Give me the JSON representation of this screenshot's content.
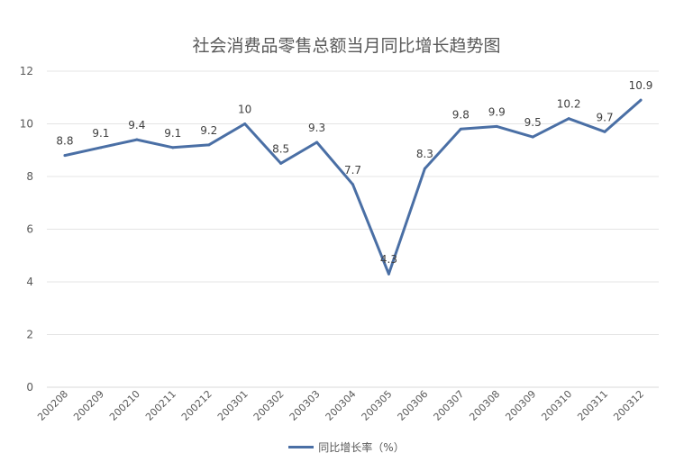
{
  "chart_data": {
    "type": "line",
    "title": "社会消费品零售总额当月同比增长趋势图",
    "categories": [
      "200208",
      "200209",
      "200210",
      "200211",
      "200212",
      "200301",
      "200302",
      "200303",
      "200304",
      "200305",
      "200306",
      "200307",
      "200308",
      "200309",
      "200310",
      "200311",
      "200312"
    ],
    "series": [
      {
        "name": "同比增长率（%）",
        "values": [
          8.8,
          9.1,
          9.4,
          9.1,
          9.2,
          10,
          8.5,
          9.3,
          7.7,
          4.3,
          8.3,
          9.8,
          9.9,
          9.5,
          10.2,
          9.7,
          10.9
        ],
        "labels": [
          "8.8",
          "9.1",
          "9.4",
          "9.1",
          "9.2",
          "10",
          "8.5",
          "9.3",
          "7.7",
          "4.3",
          "8.3",
          "9.8",
          "9.9",
          "9.5",
          "10.2",
          "9.7",
          "10.9"
        ],
        "color": "#4a6fa5"
      }
    ],
    "ylim": [
      0,
      12
    ],
    "yticks": [
      0,
      2,
      4,
      6,
      8,
      10,
      12
    ],
    "grid": true,
    "legend_position": "bottom"
  }
}
